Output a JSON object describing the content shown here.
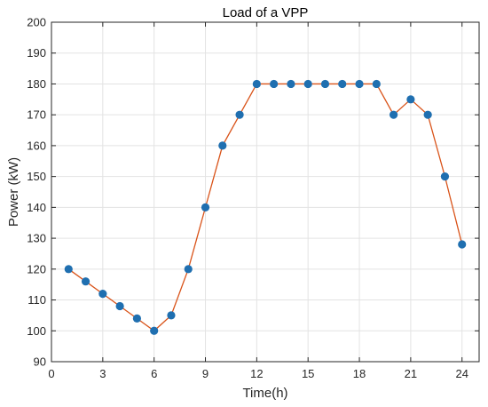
{
  "chart_data": {
    "type": "line",
    "title": "Load of a VPP",
    "xlabel": "Time(h)",
    "ylabel": "Power (kW)",
    "xlim": [
      0,
      25
    ],
    "ylim": [
      90,
      200
    ],
    "xticks": [
      0,
      3,
      6,
      9,
      12,
      15,
      18,
      21,
      24
    ],
    "yticks": [
      90,
      100,
      110,
      120,
      130,
      140,
      150,
      160,
      170,
      180,
      190,
      200
    ],
    "grid": true,
    "x": [
      1,
      2,
      3,
      4,
      5,
      6,
      7,
      8,
      9,
      10,
      11,
      12,
      13,
      14,
      15,
      16,
      17,
      18,
      19,
      20,
      21,
      22,
      23,
      24
    ],
    "series": [
      {
        "values": [
          120,
          116,
          112,
          108,
          104,
          100,
          105,
          120,
          140,
          160,
          170,
          180,
          180,
          180,
          180,
          180,
          180,
          180,
          180,
          170,
          175,
          170,
          150,
          128
        ],
        "line_color": "#d95319",
        "marker_color": "#1f6fb0"
      }
    ]
  }
}
